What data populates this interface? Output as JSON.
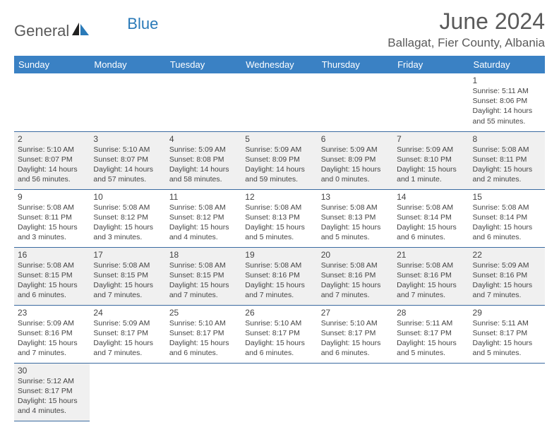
{
  "logo": {
    "general": "General",
    "blue": "Blue"
  },
  "title": "June 2024",
  "location": "Ballagat, Fier County, Albania",
  "colors": {
    "header_bg": "#3a81c4",
    "header_text": "#ffffff",
    "row_even_bg": "#f0f0f0",
    "row_odd_bg": "#ffffff",
    "border": "#3a6aa0",
    "title_color": "#5a5a5a",
    "logo_gray": "#5a5a5a",
    "logo_blue": "#2a7ab8"
  },
  "weekdays": [
    "Sunday",
    "Monday",
    "Tuesday",
    "Wednesday",
    "Thursday",
    "Friday",
    "Saturday"
  ],
  "grid": [
    [
      null,
      null,
      null,
      null,
      null,
      null,
      {
        "n": "1",
        "sr": "Sunrise: 5:11 AM",
        "ss": "Sunset: 8:06 PM",
        "dl": "Daylight: 14 hours and 55 minutes."
      }
    ],
    [
      {
        "n": "2",
        "sr": "Sunrise: 5:10 AM",
        "ss": "Sunset: 8:07 PM",
        "dl": "Daylight: 14 hours and 56 minutes."
      },
      {
        "n": "3",
        "sr": "Sunrise: 5:10 AM",
        "ss": "Sunset: 8:07 PM",
        "dl": "Daylight: 14 hours and 57 minutes."
      },
      {
        "n": "4",
        "sr": "Sunrise: 5:09 AM",
        "ss": "Sunset: 8:08 PM",
        "dl": "Daylight: 14 hours and 58 minutes."
      },
      {
        "n": "5",
        "sr": "Sunrise: 5:09 AM",
        "ss": "Sunset: 8:09 PM",
        "dl": "Daylight: 14 hours and 59 minutes."
      },
      {
        "n": "6",
        "sr": "Sunrise: 5:09 AM",
        "ss": "Sunset: 8:09 PM",
        "dl": "Daylight: 15 hours and 0 minutes."
      },
      {
        "n": "7",
        "sr": "Sunrise: 5:09 AM",
        "ss": "Sunset: 8:10 PM",
        "dl": "Daylight: 15 hours and 1 minute."
      },
      {
        "n": "8",
        "sr": "Sunrise: 5:08 AM",
        "ss": "Sunset: 8:11 PM",
        "dl": "Daylight: 15 hours and 2 minutes."
      }
    ],
    [
      {
        "n": "9",
        "sr": "Sunrise: 5:08 AM",
        "ss": "Sunset: 8:11 PM",
        "dl": "Daylight: 15 hours and 3 minutes."
      },
      {
        "n": "10",
        "sr": "Sunrise: 5:08 AM",
        "ss": "Sunset: 8:12 PM",
        "dl": "Daylight: 15 hours and 3 minutes."
      },
      {
        "n": "11",
        "sr": "Sunrise: 5:08 AM",
        "ss": "Sunset: 8:12 PM",
        "dl": "Daylight: 15 hours and 4 minutes."
      },
      {
        "n": "12",
        "sr": "Sunrise: 5:08 AM",
        "ss": "Sunset: 8:13 PM",
        "dl": "Daylight: 15 hours and 5 minutes."
      },
      {
        "n": "13",
        "sr": "Sunrise: 5:08 AM",
        "ss": "Sunset: 8:13 PM",
        "dl": "Daylight: 15 hours and 5 minutes."
      },
      {
        "n": "14",
        "sr": "Sunrise: 5:08 AM",
        "ss": "Sunset: 8:14 PM",
        "dl": "Daylight: 15 hours and 6 minutes."
      },
      {
        "n": "15",
        "sr": "Sunrise: 5:08 AM",
        "ss": "Sunset: 8:14 PM",
        "dl": "Daylight: 15 hours and 6 minutes."
      }
    ],
    [
      {
        "n": "16",
        "sr": "Sunrise: 5:08 AM",
        "ss": "Sunset: 8:15 PM",
        "dl": "Daylight: 15 hours and 6 minutes."
      },
      {
        "n": "17",
        "sr": "Sunrise: 5:08 AM",
        "ss": "Sunset: 8:15 PM",
        "dl": "Daylight: 15 hours and 7 minutes."
      },
      {
        "n": "18",
        "sr": "Sunrise: 5:08 AM",
        "ss": "Sunset: 8:15 PM",
        "dl": "Daylight: 15 hours and 7 minutes."
      },
      {
        "n": "19",
        "sr": "Sunrise: 5:08 AM",
        "ss": "Sunset: 8:16 PM",
        "dl": "Daylight: 15 hours and 7 minutes."
      },
      {
        "n": "20",
        "sr": "Sunrise: 5:08 AM",
        "ss": "Sunset: 8:16 PM",
        "dl": "Daylight: 15 hours and 7 minutes."
      },
      {
        "n": "21",
        "sr": "Sunrise: 5:08 AM",
        "ss": "Sunset: 8:16 PM",
        "dl": "Daylight: 15 hours and 7 minutes."
      },
      {
        "n": "22",
        "sr": "Sunrise: 5:09 AM",
        "ss": "Sunset: 8:16 PM",
        "dl": "Daylight: 15 hours and 7 minutes."
      }
    ],
    [
      {
        "n": "23",
        "sr": "Sunrise: 5:09 AM",
        "ss": "Sunset: 8:16 PM",
        "dl": "Daylight: 15 hours and 7 minutes."
      },
      {
        "n": "24",
        "sr": "Sunrise: 5:09 AM",
        "ss": "Sunset: 8:17 PM",
        "dl": "Daylight: 15 hours and 7 minutes."
      },
      {
        "n": "25",
        "sr": "Sunrise: 5:10 AM",
        "ss": "Sunset: 8:17 PM",
        "dl": "Daylight: 15 hours and 6 minutes."
      },
      {
        "n": "26",
        "sr": "Sunrise: 5:10 AM",
        "ss": "Sunset: 8:17 PM",
        "dl": "Daylight: 15 hours and 6 minutes."
      },
      {
        "n": "27",
        "sr": "Sunrise: 5:10 AM",
        "ss": "Sunset: 8:17 PM",
        "dl": "Daylight: 15 hours and 6 minutes."
      },
      {
        "n": "28",
        "sr": "Sunrise: 5:11 AM",
        "ss": "Sunset: 8:17 PM",
        "dl": "Daylight: 15 hours and 5 minutes."
      },
      {
        "n": "29",
        "sr": "Sunrise: 5:11 AM",
        "ss": "Sunset: 8:17 PM",
        "dl": "Daylight: 15 hours and 5 minutes."
      }
    ],
    [
      {
        "n": "30",
        "sr": "Sunrise: 5:12 AM",
        "ss": "Sunset: 8:17 PM",
        "dl": "Daylight: 15 hours and 4 minutes."
      },
      null,
      null,
      null,
      null,
      null,
      null
    ]
  ]
}
